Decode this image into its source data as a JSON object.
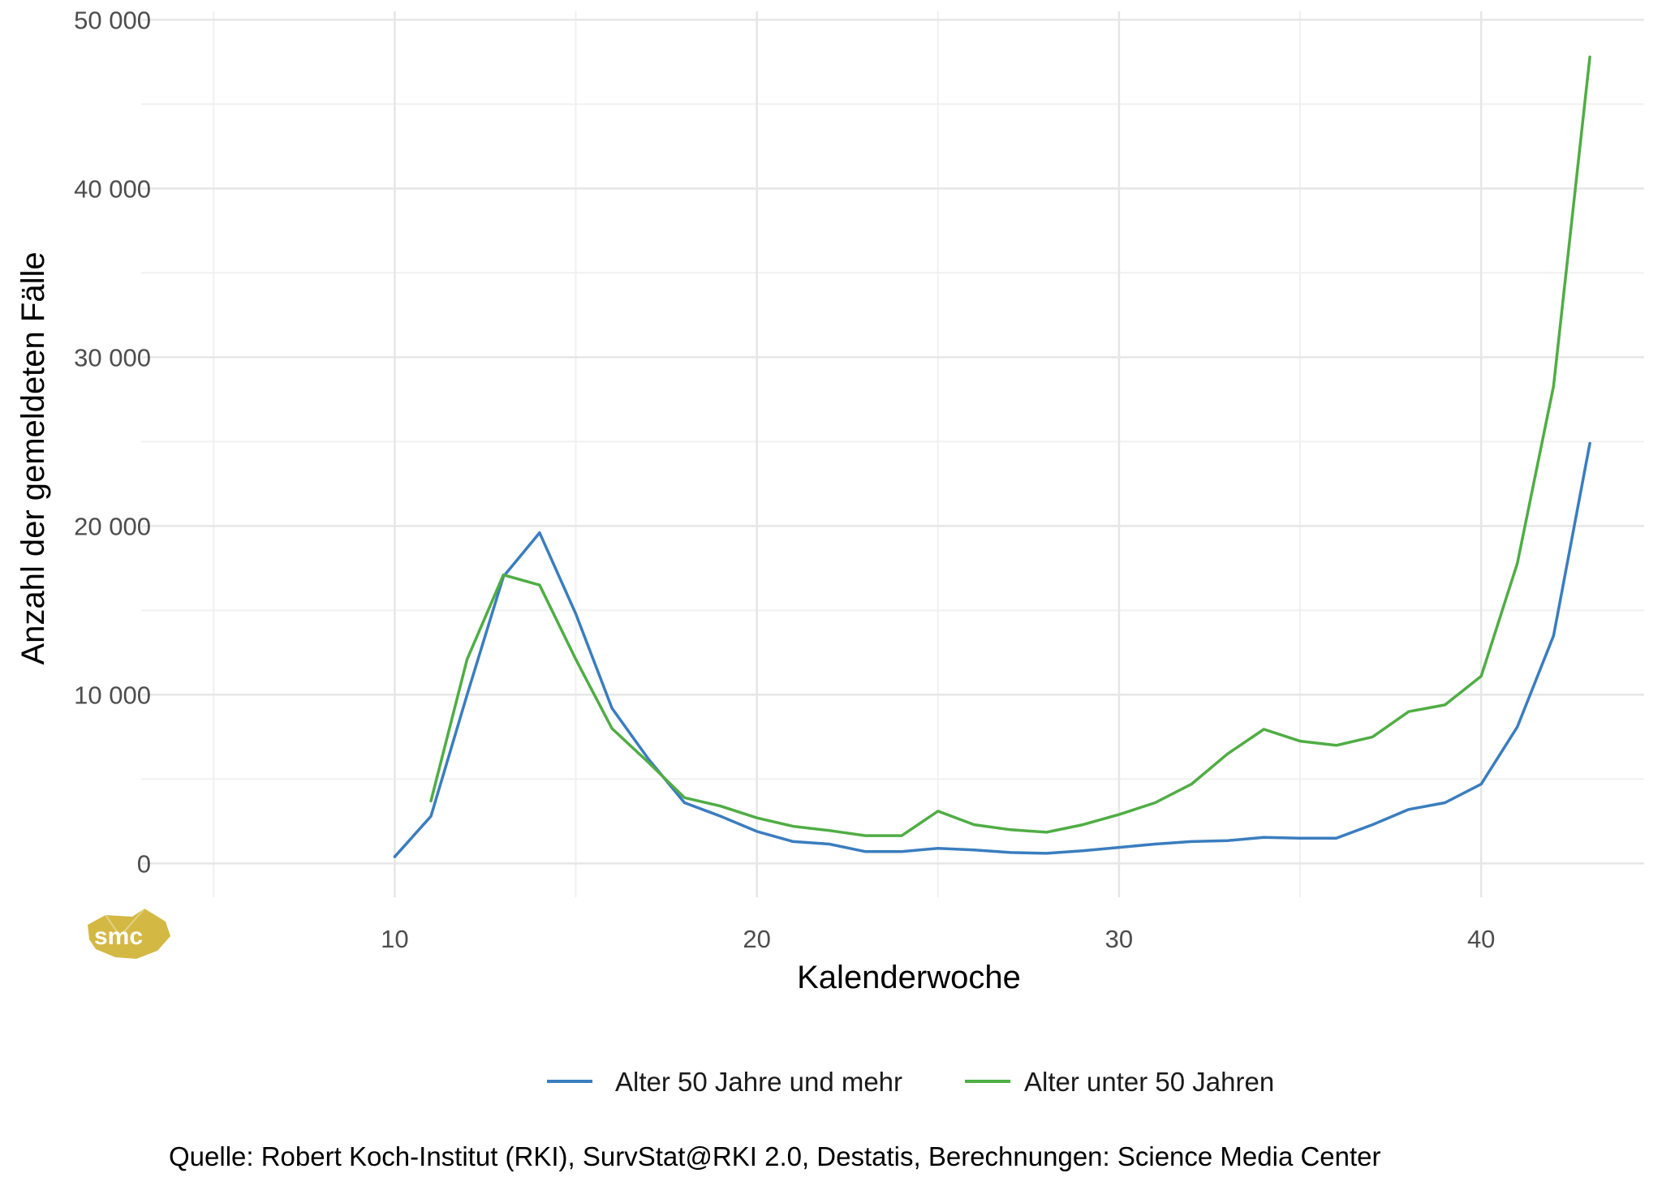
{
  "chart_data": {
    "type": "line",
    "xlabel": "Kalenderwoche",
    "ylabel": "Anzahl der gemeldeten Fälle",
    "xlim": [
      3,
      44.5
    ],
    "ylim": [
      -2000,
      50500
    ],
    "xticks": [
      10,
      20,
      30,
      40
    ],
    "xtick_labels": [
      "10",
      "20",
      "30",
      "40"
    ],
    "yticks": [
      0,
      10000,
      20000,
      30000,
      40000,
      50000
    ],
    "ytick_labels": [
      "0",
      "10 000",
      "20 000",
      "30 000",
      "40 000",
      "50 000"
    ],
    "grid": true,
    "legend_position": "bottom",
    "series": [
      {
        "name": "Alter 50 Jahre und mehr",
        "color": "#3a7dbf",
        "x": [
          10,
          11,
          12,
          13,
          14,
          15,
          16,
          17,
          18,
          19,
          20,
          21,
          22,
          23,
          24,
          25,
          26,
          27,
          28,
          29,
          30,
          31,
          32,
          33,
          34,
          35,
          36,
          37,
          38,
          39,
          40,
          41,
          42,
          43
        ],
        "values": [
          400,
          2800,
          10000,
          17000,
          19600,
          14800,
          9200,
          6200,
          3600,
          2800,
          1900,
          1300,
          1150,
          700,
          700,
          900,
          800,
          650,
          600,
          750,
          950,
          1150,
          1300,
          1350,
          1550,
          1500,
          1500,
          2300,
          3200,
          3600,
          4700,
          8100,
          13500,
          24900
        ]
      },
      {
        "name": "Alter unter 50 Jahren",
        "color": "#4fad44",
        "x": [
          11,
          12,
          13,
          14,
          15,
          16,
          17,
          18,
          19,
          20,
          21,
          22,
          23,
          24,
          25,
          26,
          27,
          28,
          29,
          30,
          31,
          32,
          33,
          34,
          35,
          36,
          37,
          38,
          39,
          40,
          41,
          42,
          43
        ],
        "values": [
          3700,
          12100,
          17100,
          16500,
          12100,
          8000,
          6000,
          3900,
          3400,
          2700,
          2200,
          1950,
          1650,
          1650,
          3100,
          2300,
          2000,
          1850,
          2300,
          2900,
          3600,
          4700,
          6500,
          7950,
          7250,
          7000,
          7500,
          9000,
          9400,
          11100,
          17800,
          28300,
          47800
        ]
      }
    ],
    "caption": "Quelle: Robert Koch-Institut (RKI), SurvStat@RKI 2.0, Destatis, Berechnungen: Science Media Center"
  },
  "logo": {
    "text": "smc",
    "color": "#d4b844"
  }
}
